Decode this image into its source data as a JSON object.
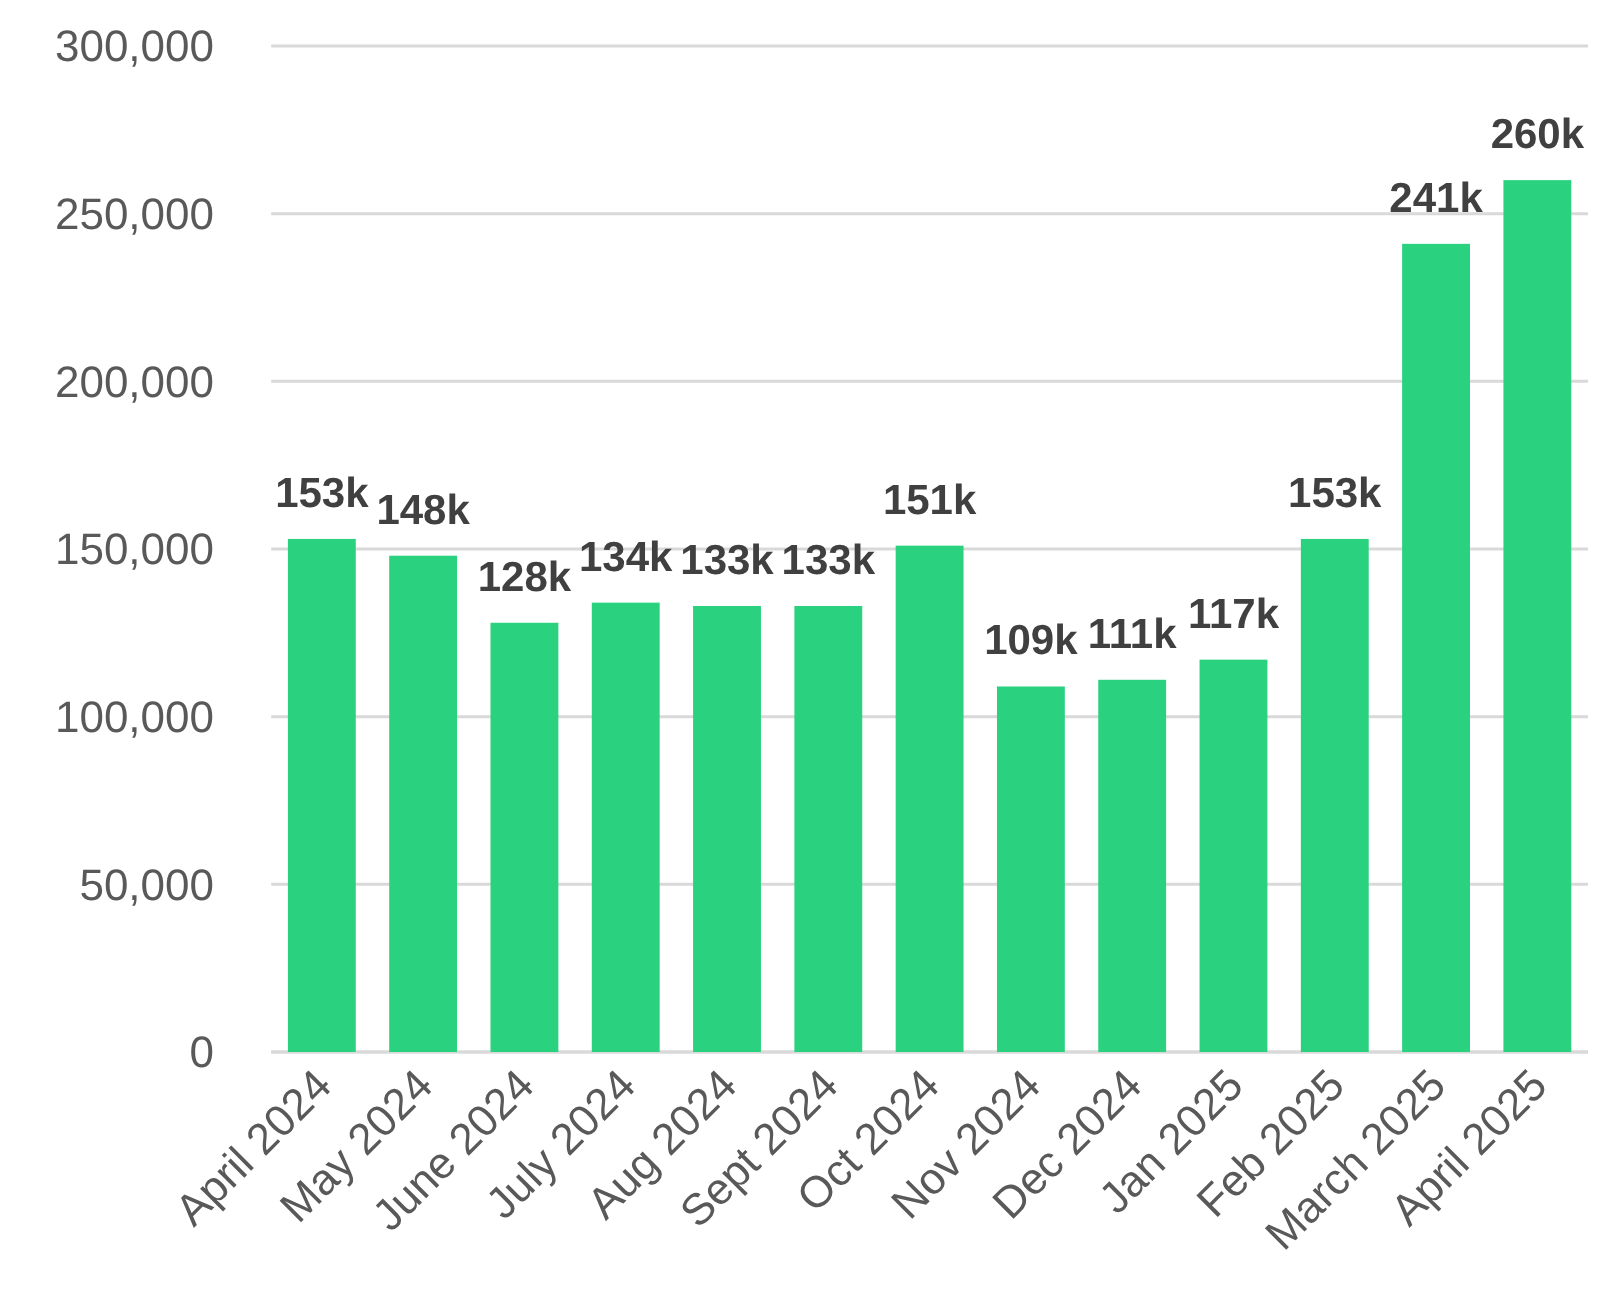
{
  "chart_data": {
    "type": "bar",
    "categories": [
      "April 2024",
      "May 2024",
      "June 2024",
      "July 2024",
      "Aug 2024",
      "Sept 2024",
      "Oct 2024",
      "Nov 2024",
      "Dec 2024",
      "Jan 2025",
      "Feb 2025",
      "March 2025",
      "April 2025"
    ],
    "values": [
      153000,
      148000,
      128000,
      134000,
      133000,
      133000,
      151000,
      109000,
      111000,
      117000,
      153000,
      241000,
      260000
    ],
    "value_labels": [
      "153k",
      "148k",
      "128k",
      "134k",
      "133k",
      "133k",
      "151k",
      "109k",
      "111k",
      "117k",
      "153k",
      "241k",
      "260k"
    ],
    "color": "#2ad17f",
    "ylim": [
      0,
      300000
    ],
    "yticks": [
      0,
      {
        "value": 50000,
        "label": "50,000"
      },
      {
        "value": 100000,
        "label": "100,000"
      },
      {
        "value": 150000,
        "label": "150,000"
      },
      {
        "value": 200000,
        "label": "200,000"
      },
      {
        "value": 250000,
        "label": "250,000"
      },
      {
        "value": 300000,
        "label": "300,000"
      }
    ],
    "grid": "y"
  }
}
